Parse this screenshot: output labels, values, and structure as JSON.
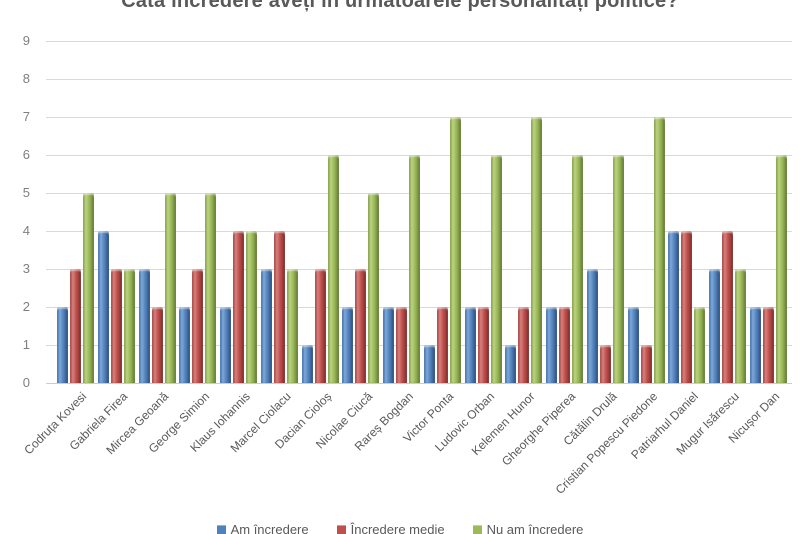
{
  "chart_data": {
    "type": "bar",
    "title": "Câtă încredere aveți în următoarele personalități politice?",
    "categories": [
      "Codruța Kovesi",
      "Gabriela Firea",
      "Mircea Geoană",
      "George Simion",
      "Klaus Iohannis",
      "Marcel Ciolacu",
      "Dacian Cioloș",
      "Nicolae Ciucă",
      "Rareș Bogdan",
      "Victor Ponta",
      "Ludovic Orban",
      "Kelemen Hunor",
      "Gheorghe Piperea",
      "Cătălin Drulă",
      "Cristian Popescu Piedone",
      "Patriarhul Daniel",
      "Mugur Isărescu",
      "Nicușor Dan"
    ],
    "series": [
      {
        "name": "Am încredere",
        "color": "#4F81BD",
        "values": [
          2,
          4,
          3,
          2,
          2,
          3,
          1,
          2,
          2,
          1,
          2,
          1,
          2,
          3,
          2,
          4,
          3,
          2
        ]
      },
      {
        "name": "Încredere medie",
        "color": "#C0504D",
        "values": [
          3,
          3,
          2,
          3,
          4,
          4,
          3,
          3,
          2,
          2,
          2,
          2,
          2,
          1,
          1,
          4,
          4,
          2
        ]
      },
      {
        "name": "Nu am încredere",
        "color": "#9BBB59",
        "values": [
          5,
          3,
          5,
          5,
          4,
          3,
          6,
          5,
          6,
          7,
          6,
          7,
          6,
          6,
          7,
          2,
          3,
          6
        ]
      }
    ],
    "xlabel": "",
    "ylabel": "",
    "ylim": [
      0,
      9
    ],
    "yticks": [
      0,
      1,
      2,
      3,
      4,
      5,
      6,
      7,
      8,
      9
    ],
    "grid": true,
    "legend_position": "bottom"
  },
  "colors": {
    "title_text": "#595959",
    "axis_text": "#7F7F7F",
    "category_text": "#595959",
    "gridline": "#D9D9D9",
    "background": "#FFFFFF"
  }
}
